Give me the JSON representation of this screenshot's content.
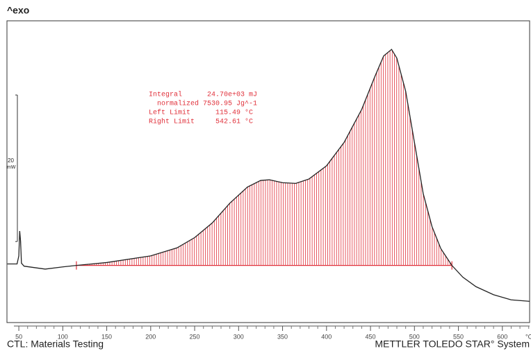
{
  "chart_data": {
    "type": "line",
    "top_label": "^exo",
    "footer_left": "CTL: Materials Testing",
    "footer_right": "METTLER TOLEDO STAR° System",
    "x_unit": "°C",
    "scale_bar": {
      "value": 20,
      "unit": "mW"
    },
    "annotation": [
      "Integral      24.70e+03 mJ",
      "  normalized 7530.95 Jg^-1",
      "Left Limit      115.49 °C",
      "Right Limit     542.61 °C"
    ],
    "integration": {
      "left": 115.49,
      "right": 542.61
    },
    "x": [
      37,
      48,
      50,
      51,
      52,
      53,
      56,
      80,
      100,
      115.49,
      150,
      200,
      230,
      250,
      270,
      290,
      310,
      325,
      335,
      350,
      365,
      380,
      400,
      420,
      440,
      455,
      465,
      474,
      480,
      490,
      500,
      510,
      520,
      530,
      542.61,
      555,
      570,
      590,
      610,
      631
    ],
    "series": [
      {
        "name": "DSC",
        "color": "#222222",
        "values": [
          0.4,
          0.4,
          1.5,
          4.9,
          3.5,
          0.5,
          0.1,
          -0.3,
          0.0,
          0.2,
          0.6,
          1.5,
          2.6,
          4.0,
          6.0,
          8.7,
          10.9,
          11.8,
          11.9,
          11.5,
          11.4,
          12.0,
          13.8,
          17.0,
          21.5,
          26.0,
          28.8,
          29.7,
          28.5,
          24.0,
          17.0,
          10.0,
          5.5,
          2.5,
          0.2,
          -1.4,
          -2.7,
          -3.8,
          -4.5,
          -4.7
        ]
      }
    ],
    "hatch_color": "#e0303a",
    "xlim": [
      36.5,
      631
    ],
    "ylim": [
      -7.6,
      33.6
    ],
    "xticks": [
      50,
      100,
      150,
      200,
      250,
      300,
      350,
      400,
      450,
      500,
      550,
      600
    ]
  }
}
